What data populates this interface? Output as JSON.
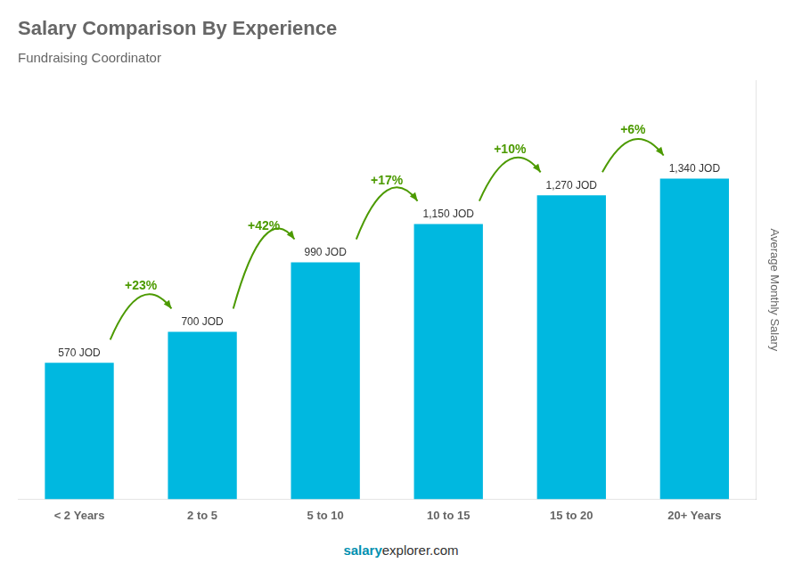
{
  "chart_data": {
    "type": "bar",
    "title": "Salary Comparison By Experience",
    "subtitle": "Fundraising Coordinator",
    "categories": [
      "< 2 Years",
      "2 to 5",
      "5 to 10",
      "10 to 15",
      "15 to 20",
      "20+ Years"
    ],
    "values": [
      570,
      700,
      990,
      1150,
      1270,
      1340
    ],
    "value_labels": [
      "570 JOD",
      "700 JOD",
      "990 JOD",
      "1,150 JOD",
      "1,270 JOD",
      "1,340 JOD"
    ],
    "data_labels": true,
    "color": "#00b8e0",
    "ylabel": "Average Monthly Salary",
    "ylim": [
      0,
      1750
    ],
    "tick_labels": "x",
    "grid": false,
    "annotations": [
      "+23%",
      "+42%",
      "+17%",
      "+10%",
      "+6%"
    ],
    "footer": [
      "salary",
      "explorer.com"
    ]
  }
}
